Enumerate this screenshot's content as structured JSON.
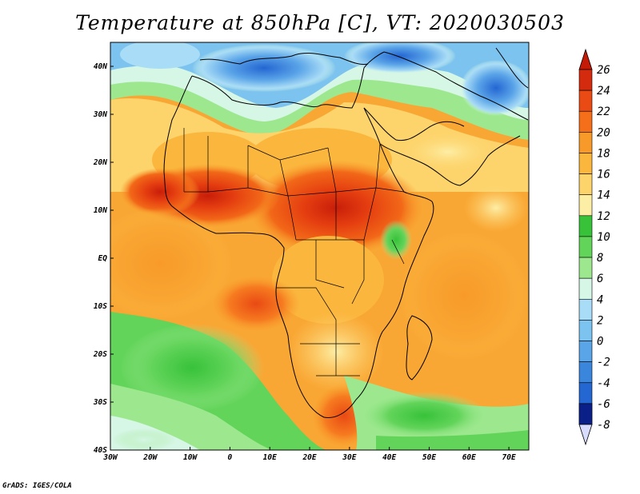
{
  "title": "Temperature at 850hPa [C], VT: 2020030503",
  "credit": "GrADS: IGES/COLA",
  "map": {
    "projection": "latlon",
    "lon_range": [
      -30,
      75
    ],
    "lat_range": [
      -40,
      45
    ],
    "lon_ticks": [
      {
        "value": -30,
        "label": "30W"
      },
      {
        "value": -20,
        "label": "20W"
      },
      {
        "value": -10,
        "label": "10W"
      },
      {
        "value": 0,
        "label": "0"
      },
      {
        "value": 10,
        "label": "10E"
      },
      {
        "value": 20,
        "label": "20E"
      },
      {
        "value": 30,
        "label": "30E"
      },
      {
        "value": 40,
        "label": "40E"
      },
      {
        "value": 50,
        "label": "50E"
      },
      {
        "value": 60,
        "label": "60E"
      },
      {
        "value": 70,
        "label": "70E"
      }
    ],
    "lat_ticks": [
      {
        "value": 40,
        "label": "40N"
      },
      {
        "value": 30,
        "label": "30N"
      },
      {
        "value": 20,
        "label": "20N"
      },
      {
        "value": 10,
        "label": "10N"
      },
      {
        "value": 0,
        "label": "EQ"
      },
      {
        "value": -10,
        "label": "10S"
      },
      {
        "value": -20,
        "label": "20S"
      },
      {
        "value": -30,
        "label": "30S"
      },
      {
        "value": -40,
        "label": "40S"
      }
    ]
  },
  "colorbar": {
    "labels": [
      "26",
      "24",
      "22",
      "20",
      "18",
      "16",
      "14",
      "12",
      "10",
      "8",
      "6",
      "4",
      "2",
      "0",
      "-2",
      "-4",
      "-6",
      "-8"
    ],
    "colors": [
      "#d42a0e",
      "#ea4a14",
      "#f56f1a",
      "#f89a2a",
      "#fbb63e",
      "#fdd46c",
      "#fdeea6",
      "#38c23a",
      "#62d45a",
      "#9de88e",
      "#d6f6e6",
      "#a9dcf6",
      "#7cc3ef",
      "#5aa4e8",
      "#3b86dd",
      "#2466d2",
      "#1646b8",
      "#0b1f88"
    ],
    "over_color": "#c41a08",
    "under_color": "#d8dcff"
  }
}
